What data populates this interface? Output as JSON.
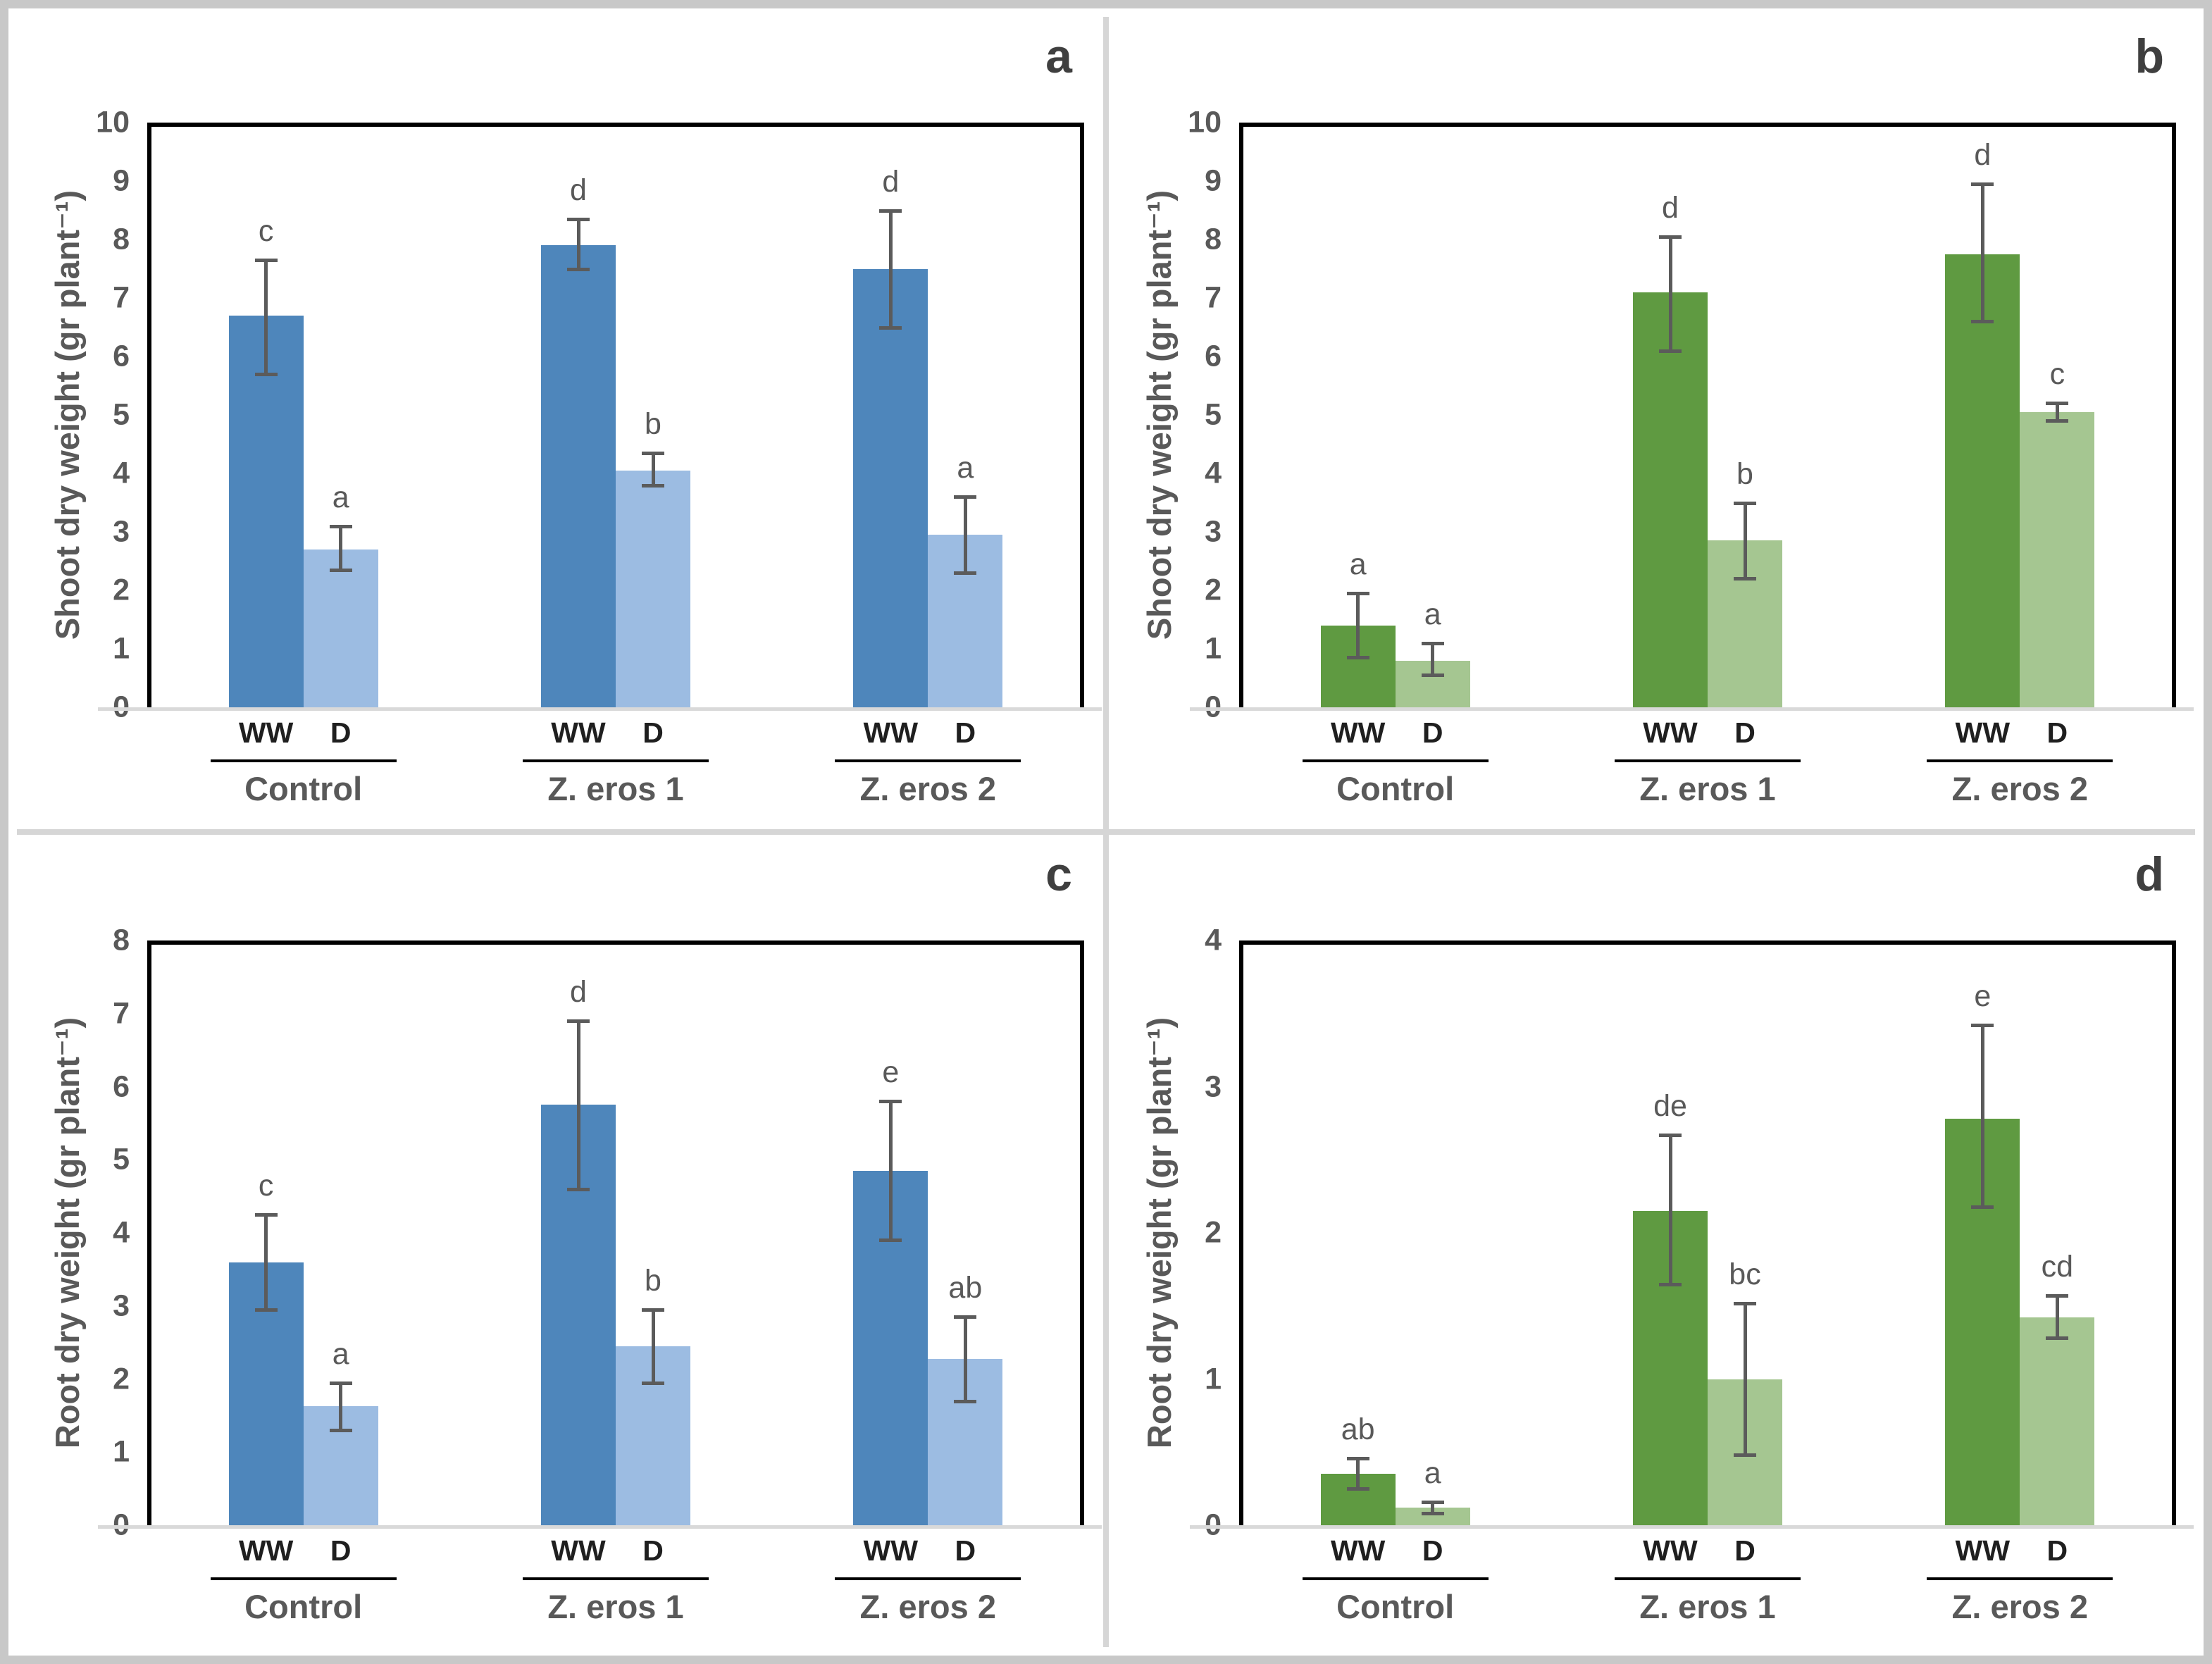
{
  "figure": {
    "background": "#ffffff",
    "frame_color": "#c8c8c8",
    "panel_divider_color": "#d6d6d6"
  },
  "colors": {
    "blue_ww": "#4e86bb",
    "blue_d": "#9cbce2",
    "green_ww": "#5f9a41",
    "green_d": "#a5c691",
    "axis_black": "#000000",
    "baseline_gray": "#d9d9d9",
    "tick_text_gray": "#595959",
    "sig_letter_gray": "#595959",
    "condition_label_dark": "#1f1f1f",
    "group_label_gray": "#595959",
    "panel_letter_gray": "#3f3f3f",
    "error_bar_gray": "#5b5b5b"
  },
  "chart_data": [
    {
      "panel_letter": "a",
      "type": "bar",
      "title": "",
      "ylabel": "Shoot dry weight (gr plant⁻¹)",
      "xlabel": "",
      "ylim": [
        0,
        10
      ],
      "yticks": [
        0,
        1,
        2,
        3,
        4,
        5,
        6,
        7,
        8,
        9,
        10
      ],
      "grid": false,
      "legend": "none",
      "color_scheme": "blue",
      "categories": [
        "Control",
        "Z. eros 1",
        "Z. eros 2"
      ],
      "series_labels": [
        "WW",
        "D"
      ],
      "series": [
        {
          "name": "WW",
          "values": [
            6.7,
            7.9,
            7.5
          ],
          "err_lo": [
            5.7,
            7.5,
            6.5
          ],
          "err_hi": [
            7.65,
            8.35,
            8.5
          ],
          "letters": [
            "c",
            "d",
            "d"
          ]
        },
        {
          "name": "D",
          "values": [
            2.7,
            4.05,
            2.95
          ],
          "err_lo": [
            2.35,
            3.8,
            2.3
          ],
          "err_hi": [
            3.1,
            4.35,
            3.6
          ],
          "letters": [
            "a",
            "b",
            "a"
          ]
        }
      ]
    },
    {
      "panel_letter": "b",
      "type": "bar",
      "title": "",
      "ylabel": "Shoot dry weight (gr plant⁻¹)",
      "xlabel": "",
      "ylim": [
        0,
        10
      ],
      "yticks": [
        0,
        1,
        2,
        3,
        4,
        5,
        6,
        7,
        8,
        9,
        10
      ],
      "grid": false,
      "legend": "none",
      "color_scheme": "green",
      "categories": [
        "Control",
        "Z. eros 1",
        "Z. eros 2"
      ],
      "series_labels": [
        "WW",
        "D"
      ],
      "series": [
        {
          "name": "WW",
          "values": [
            1.4,
            7.1,
            7.75
          ],
          "err_lo": [
            0.85,
            6.1,
            6.6
          ],
          "err_hi": [
            1.95,
            8.05,
            8.95
          ],
          "letters": [
            "a",
            "d",
            "d"
          ]
        },
        {
          "name": "D",
          "values": [
            0.8,
            2.85,
            5.05
          ],
          "err_lo": [
            0.55,
            2.2,
            4.9
          ],
          "err_hi": [
            1.1,
            3.5,
            5.2
          ],
          "letters": [
            "a",
            "b",
            "c"
          ]
        }
      ]
    },
    {
      "panel_letter": "c",
      "type": "bar",
      "title": "",
      "ylabel": "Root dry weight (gr plant⁻¹)",
      "xlabel": "",
      "ylim": [
        0,
        8
      ],
      "yticks": [
        0,
        1,
        2,
        3,
        4,
        5,
        6,
        7,
        8
      ],
      "grid": false,
      "legend": "none",
      "color_scheme": "blue",
      "categories": [
        "Control",
        "Z. eros 1",
        "Z. eros 2"
      ],
      "series_labels": [
        "WW",
        "D"
      ],
      "series": [
        {
          "name": "WW",
          "values": [
            3.6,
            5.75,
            4.85
          ],
          "err_lo": [
            2.95,
            4.6,
            3.9
          ],
          "err_hi": [
            4.25,
            6.9,
            5.8
          ],
          "letters": [
            "c",
            "d",
            "e"
          ]
        },
        {
          "name": "D",
          "values": [
            1.63,
            2.45,
            2.27
          ],
          "err_lo": [
            1.3,
            1.95,
            1.7
          ],
          "err_hi": [
            1.95,
            2.95,
            2.85
          ],
          "letters": [
            "a",
            "b",
            "ab"
          ]
        }
      ]
    },
    {
      "panel_letter": "d",
      "type": "bar",
      "title": "",
      "ylabel": "Root dry weight (gr plant⁻¹)",
      "xlabel": "",
      "ylim": [
        0,
        4
      ],
      "yticks": [
        0,
        1,
        2,
        3,
        4
      ],
      "grid": false,
      "legend": "none",
      "color_scheme": "green",
      "categories": [
        "Control",
        "Z. eros 1",
        "Z. eros 2"
      ],
      "series_labels": [
        "WW",
        "D"
      ],
      "series": [
        {
          "name": "WW",
          "values": [
            0.35,
            2.15,
            2.78
          ],
          "err_lo": [
            0.25,
            1.65,
            2.18
          ],
          "err_hi": [
            0.46,
            2.67,
            3.42
          ],
          "letters": [
            "ab",
            "de",
            "e"
          ]
        },
        {
          "name": "D",
          "values": [
            0.12,
            1.0,
            1.42
          ],
          "err_lo": [
            0.08,
            0.48,
            1.28
          ],
          "err_hi": [
            0.16,
            1.52,
            1.57
          ],
          "letters": [
            "a",
            "bc",
            "cd"
          ]
        }
      ]
    }
  ]
}
